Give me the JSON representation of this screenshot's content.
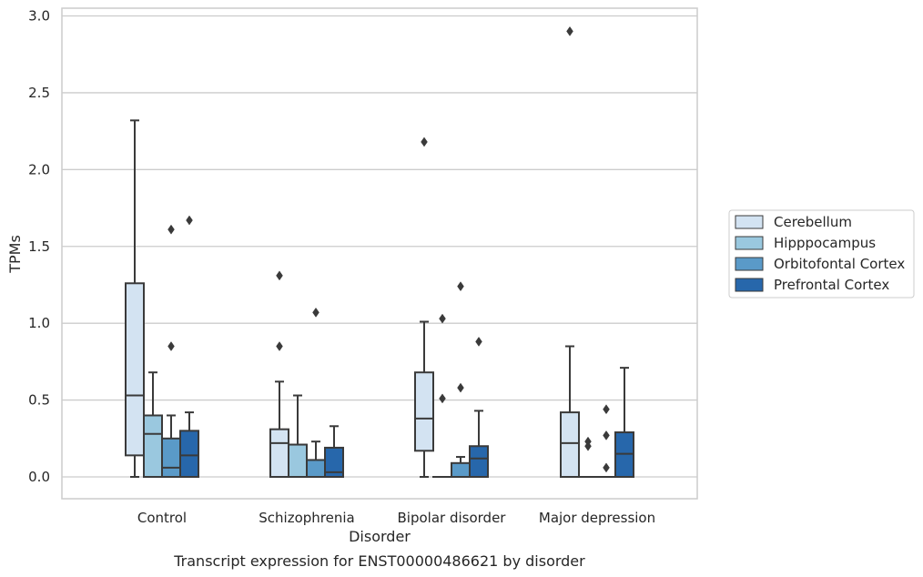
{
  "chart_data": {
    "type": "box",
    "title": "",
    "caption": "Transcript expression for ENST00000486621 by disorder",
    "xlabel": "Disorder",
    "ylabel": "TPMs",
    "ylim": [
      -0.14,
      3.06
    ],
    "yticks": [
      0.0,
      0.5,
      1.0,
      1.5,
      2.0,
      2.5,
      3.0
    ],
    "ytick_labels": [
      "0.0",
      "0.5",
      "1.0",
      "1.5",
      "2.0",
      "2.5",
      "3.0"
    ],
    "grid": "horizontal",
    "legend_position": "right",
    "categories": [
      "Control",
      "Schizophrenia",
      "Bipolar disorder",
      "Major depression"
    ],
    "series": [
      {
        "name": "Cerebellum",
        "color": "#d3e3f2",
        "boxes": [
          {
            "whisker_low": 0.0,
            "q1": 0.14,
            "median": 0.53,
            "q3": 1.26,
            "whisker_high": 2.32,
            "outliers": []
          },
          {
            "whisker_low": 0.0,
            "q1": 0.0,
            "median": 0.22,
            "q3": 0.31,
            "whisker_high": 0.62,
            "outliers": [
              0.85,
              1.31
            ]
          },
          {
            "whisker_low": 0.0,
            "q1": 0.17,
            "median": 0.38,
            "q3": 0.68,
            "whisker_high": 1.01,
            "outliers": [
              2.18
            ]
          },
          {
            "whisker_low": 0.0,
            "q1": 0.0,
            "median": 0.22,
            "q3": 0.42,
            "whisker_high": 0.85,
            "outliers": [
              2.9
            ]
          }
        ]
      },
      {
        "name": "Hipppocampus",
        "color": "#9ac8df",
        "boxes": [
          {
            "whisker_low": 0.0,
            "q1": 0.0,
            "median": 0.28,
            "q3": 0.4,
            "whisker_high": 0.68,
            "outliers": []
          },
          {
            "whisker_low": 0.0,
            "q1": 0.0,
            "median": 0.21,
            "q3": 0.21,
            "whisker_high": 0.53,
            "outliers": []
          },
          {
            "whisker_low": 0.0,
            "q1": 0.0,
            "median": 0.0,
            "q3": 0.0,
            "whisker_high": 0.0,
            "outliers": [
              0.51,
              1.03
            ]
          },
          {
            "whisker_low": 0.0,
            "q1": 0.0,
            "median": 0.0,
            "q3": 0.0,
            "whisker_high": 0.0,
            "outliers": [
              0.2,
              0.23
            ]
          }
        ]
      },
      {
        "name": "Orbitofontal Cortex",
        "color": "#5a9ac8",
        "boxes": [
          {
            "whisker_low": 0.0,
            "q1": 0.0,
            "median": 0.06,
            "q3": 0.25,
            "whisker_high": 0.4,
            "outliers": [
              0.85,
              1.61
            ]
          },
          {
            "whisker_low": 0.0,
            "q1": 0.0,
            "median": 0.0,
            "q3": 0.11,
            "whisker_high": 0.23,
            "outliers": [
              1.07
            ]
          },
          {
            "whisker_low": 0.0,
            "q1": 0.0,
            "median": 0.0,
            "q3": 0.09,
            "whisker_high": 0.13,
            "outliers": [
              0.58,
              1.24
            ]
          },
          {
            "whisker_low": 0.0,
            "q1": 0.0,
            "median": 0.0,
            "q3": 0.0,
            "whisker_high": 0.0,
            "outliers": [
              0.06,
              0.27,
              0.44
            ]
          }
        ]
      },
      {
        "name": "Prefrontal Cortex",
        "color": "#2767ab",
        "boxes": [
          {
            "whisker_low": 0.0,
            "q1": 0.0,
            "median": 0.14,
            "q3": 0.3,
            "whisker_high": 0.42,
            "outliers": [
              1.67
            ]
          },
          {
            "whisker_low": 0.0,
            "q1": 0.0,
            "median": 0.03,
            "q3": 0.19,
            "whisker_high": 0.33,
            "outliers": []
          },
          {
            "whisker_low": 0.0,
            "q1": 0.0,
            "median": 0.12,
            "q3": 0.2,
            "whisker_high": 0.43,
            "outliers": [
              0.88
            ]
          },
          {
            "whisker_low": 0.0,
            "q1": 0.0,
            "median": 0.15,
            "q3": 0.29,
            "whisker_high": 0.71,
            "outliers": []
          }
        ]
      }
    ],
    "colors": {
      "box_edge": "#3a3a3a",
      "grid": "#cccccc",
      "frame": "#cccccc",
      "text": "#262626"
    }
  }
}
